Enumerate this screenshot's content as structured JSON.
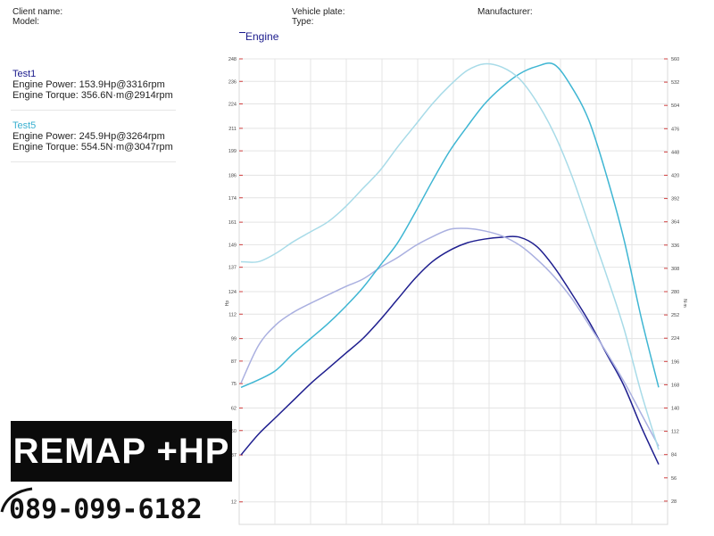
{
  "header": {
    "client_label": "Client name:",
    "model_label": "Model:",
    "plate_label": "Vehicle plate:",
    "type_label": "Type:",
    "manufacturer_label": "Manufacturer:"
  },
  "legend_title": "Engine",
  "tests": [
    {
      "name": "Test1",
      "power": "Engine Power: 153.9Hp@3316rpm",
      "torque": "Engine Torque: 356.6N·m@2914rpm",
      "name_color": "#1a1a8c"
    },
    {
      "name": "Test5",
      "power": "Engine Power: 245.9Hp@3264rpm",
      "torque": "Engine Torque: 554.5N·m@3047rpm",
      "name_color": "#3ab0d0"
    }
  ],
  "promo": {
    "text": "REMAP +HP",
    "phone": "089-099-6182"
  },
  "chart_data": {
    "type": "line",
    "y_left_label": "Hp",
    "y_right_label": "N·m",
    "y_left_ticks": [
      "248",
      "236",
      "224",
      "211",
      "199",
      "186",
      "174",
      "161",
      "149",
      "137",
      "124",
      "112",
      "99",
      "87",
      "75",
      "62",
      "50",
      "37",
      "12"
    ],
    "y_left_tick_values": [
      248,
      236,
      224,
      211,
      199,
      186,
      174,
      161,
      149,
      137,
      124,
      112,
      99,
      87,
      75,
      62,
      50,
      37,
      12
    ],
    "y_left_range": [
      0,
      248
    ],
    "y_right_ticks": [
      "560",
      "532",
      "504",
      "476",
      "448",
      "420",
      "392",
      "364",
      "336",
      "308",
      "280",
      "252",
      "224",
      "196",
      "168",
      "140",
      "112",
      "84",
      "56",
      "28"
    ],
    "y_right_tick_values": [
      560,
      532,
      504,
      476,
      448,
      420,
      392,
      364,
      336,
      308,
      280,
      252,
      224,
      196,
      168,
      140,
      112,
      84,
      56,
      28
    ],
    "y_right_range": [
      0,
      560
    ],
    "grid": true,
    "x": [
      0,
      1,
      2,
      3,
      4,
      5,
      6,
      7,
      8,
      9,
      10,
      11,
      12,
      13,
      14,
      15,
      16,
      17,
      18,
      19,
      20,
      21,
      22,
      23,
      24
    ],
    "series": [
      {
        "name": "Test1",
        "quantity": "power",
        "axis": "left",
        "color": "#1f1f8f",
        "values": [
          37,
          48,
          57,
          66,
          75,
          83,
          91,
          99,
          109,
          120,
          131,
          140,
          146,
          150,
          152,
          153,
          153,
          148,
          137,
          123,
          108,
          91,
          74,
          52,
          32
        ]
      },
      {
        "name": "Test1",
        "quantity": "torque",
        "axis": "right",
        "color": "#aab0e0",
        "values": [
          170,
          215,
          240,
          255,
          266,
          276,
          286,
          295,
          309,
          321,
          335,
          346,
          355,
          356,
          353,
          347,
          336,
          319,
          298,
          272,
          240,
          207,
          172,
          133,
          94
        ]
      },
      {
        "name": "Test5",
        "quantity": "power",
        "axis": "left",
        "color": "#3fb6d3",
        "values": [
          73,
          77,
          82,
          91,
          99,
          107,
          116,
          126,
          138,
          150,
          166,
          183,
          199,
          212,
          224,
          233,
          240,
          244,
          245,
          233,
          215,
          186,
          152,
          110,
          73
        ]
      },
      {
        "name": "Test5",
        "quantity": "torque",
        "axis": "right",
        "color": "#a8dbe8",
        "values": [
          316,
          316,
          326,
          340,
          352,
          364,
          382,
          404,
          426,
          454,
          480,
          506,
          528,
          546,
          554,
          550,
          536,
          508,
          470,
          420,
          360,
          300,
          236,
          158,
          90
        ]
      }
    ]
  }
}
